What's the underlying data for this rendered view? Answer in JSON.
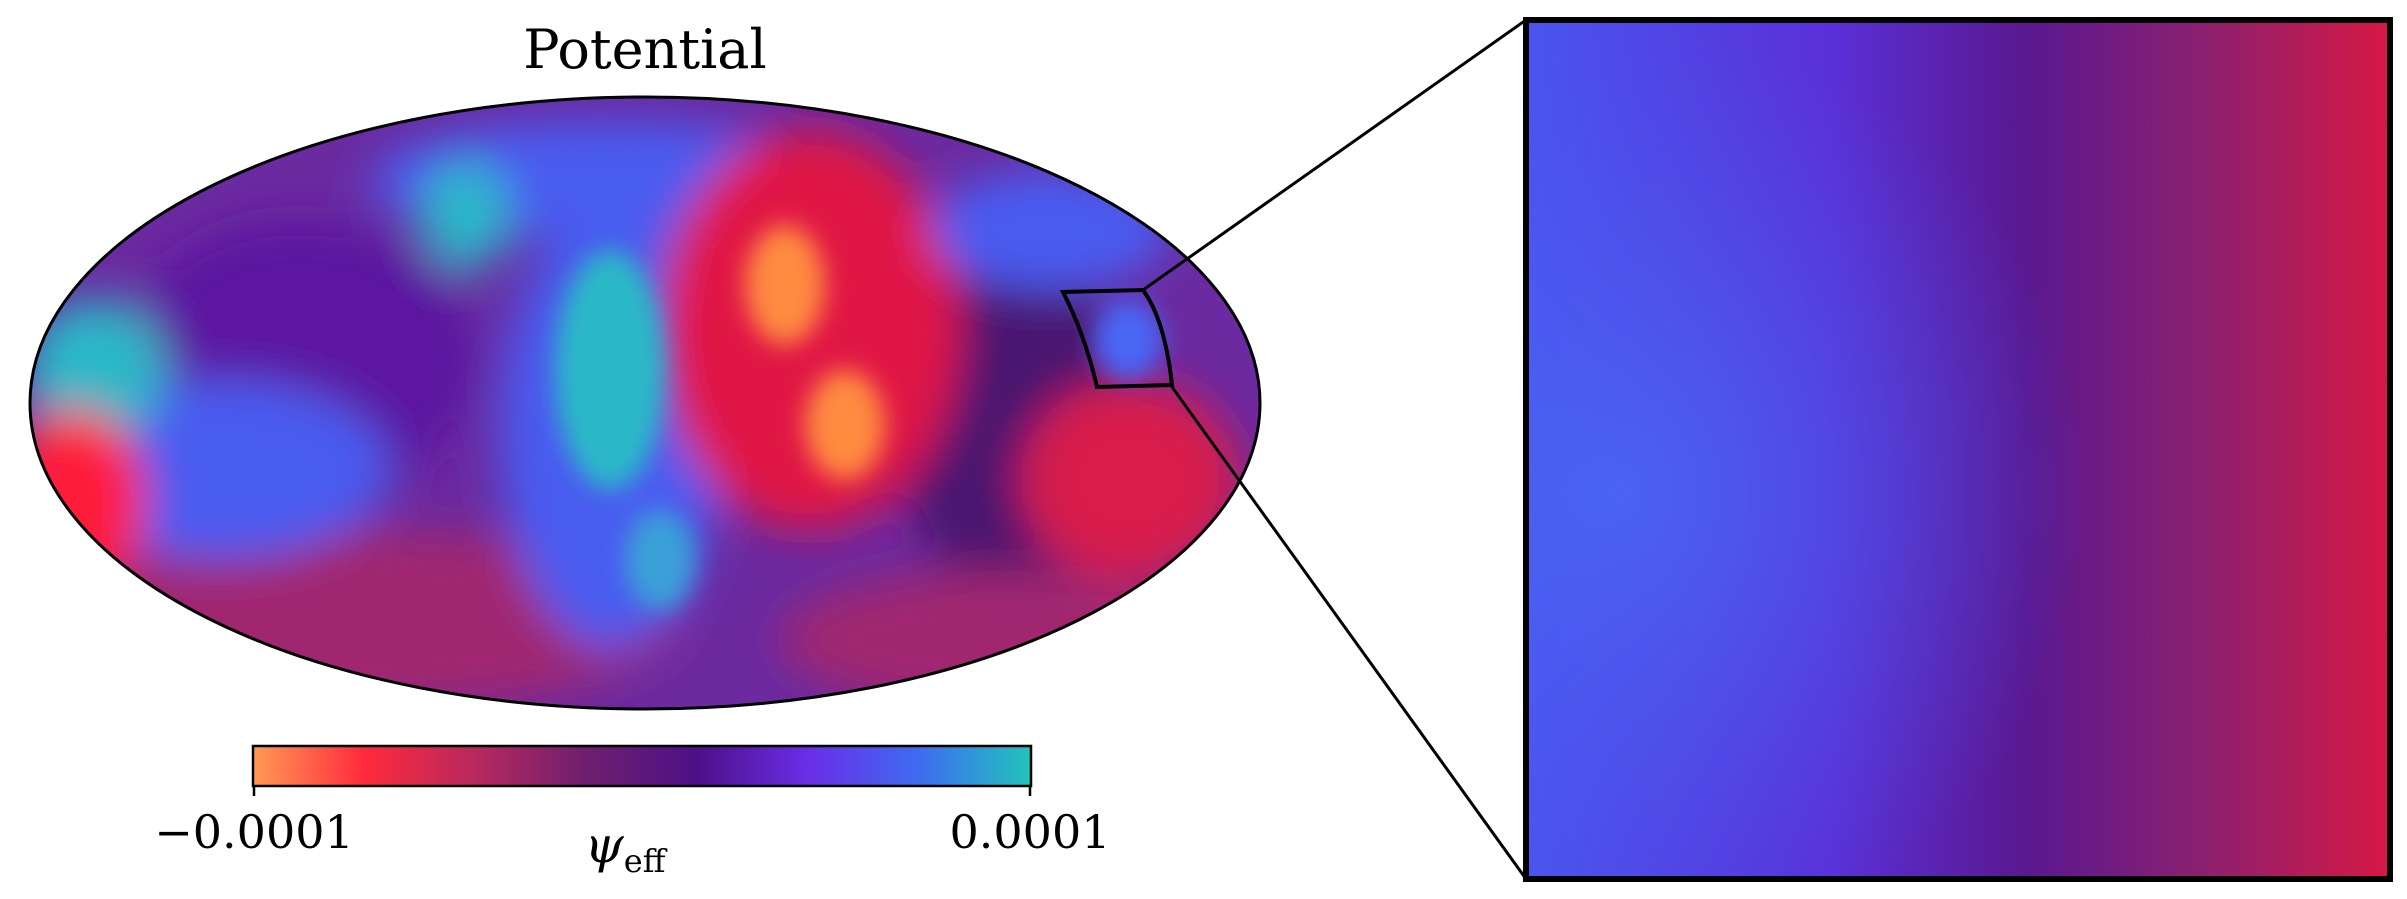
{
  "figure": {
    "title": "Potential",
    "colorbar": {
      "min_label": "−0.0001",
      "max_label": "0.0001",
      "label_symbol": "ψ",
      "label_subscript": "eff",
      "vmin": -0.0001,
      "vmax": 0.0001,
      "colors": [
        "#ff9a55",
        "#ff2a3c",
        "#b8285e",
        "#6e1f6e",
        "#4e1088",
        "#6a2ee8",
        "#3d6cf0",
        "#22c4bc"
      ]
    },
    "map": {
      "projection": "mollweide",
      "colors": {
        "background": "#6b2aa0",
        "cyan": "#2ab8c8",
        "blue": "#4a5cf0",
        "purple": "#5b18a0",
        "red": "#ff1a3a",
        "orange": "#ff8a40",
        "dark_purple": "#4a1270"
      }
    },
    "zoom_panel": {
      "colors": {
        "left": "#4a55ee",
        "mid": "#5a1890",
        "right": "#d61844"
      }
    }
  }
}
